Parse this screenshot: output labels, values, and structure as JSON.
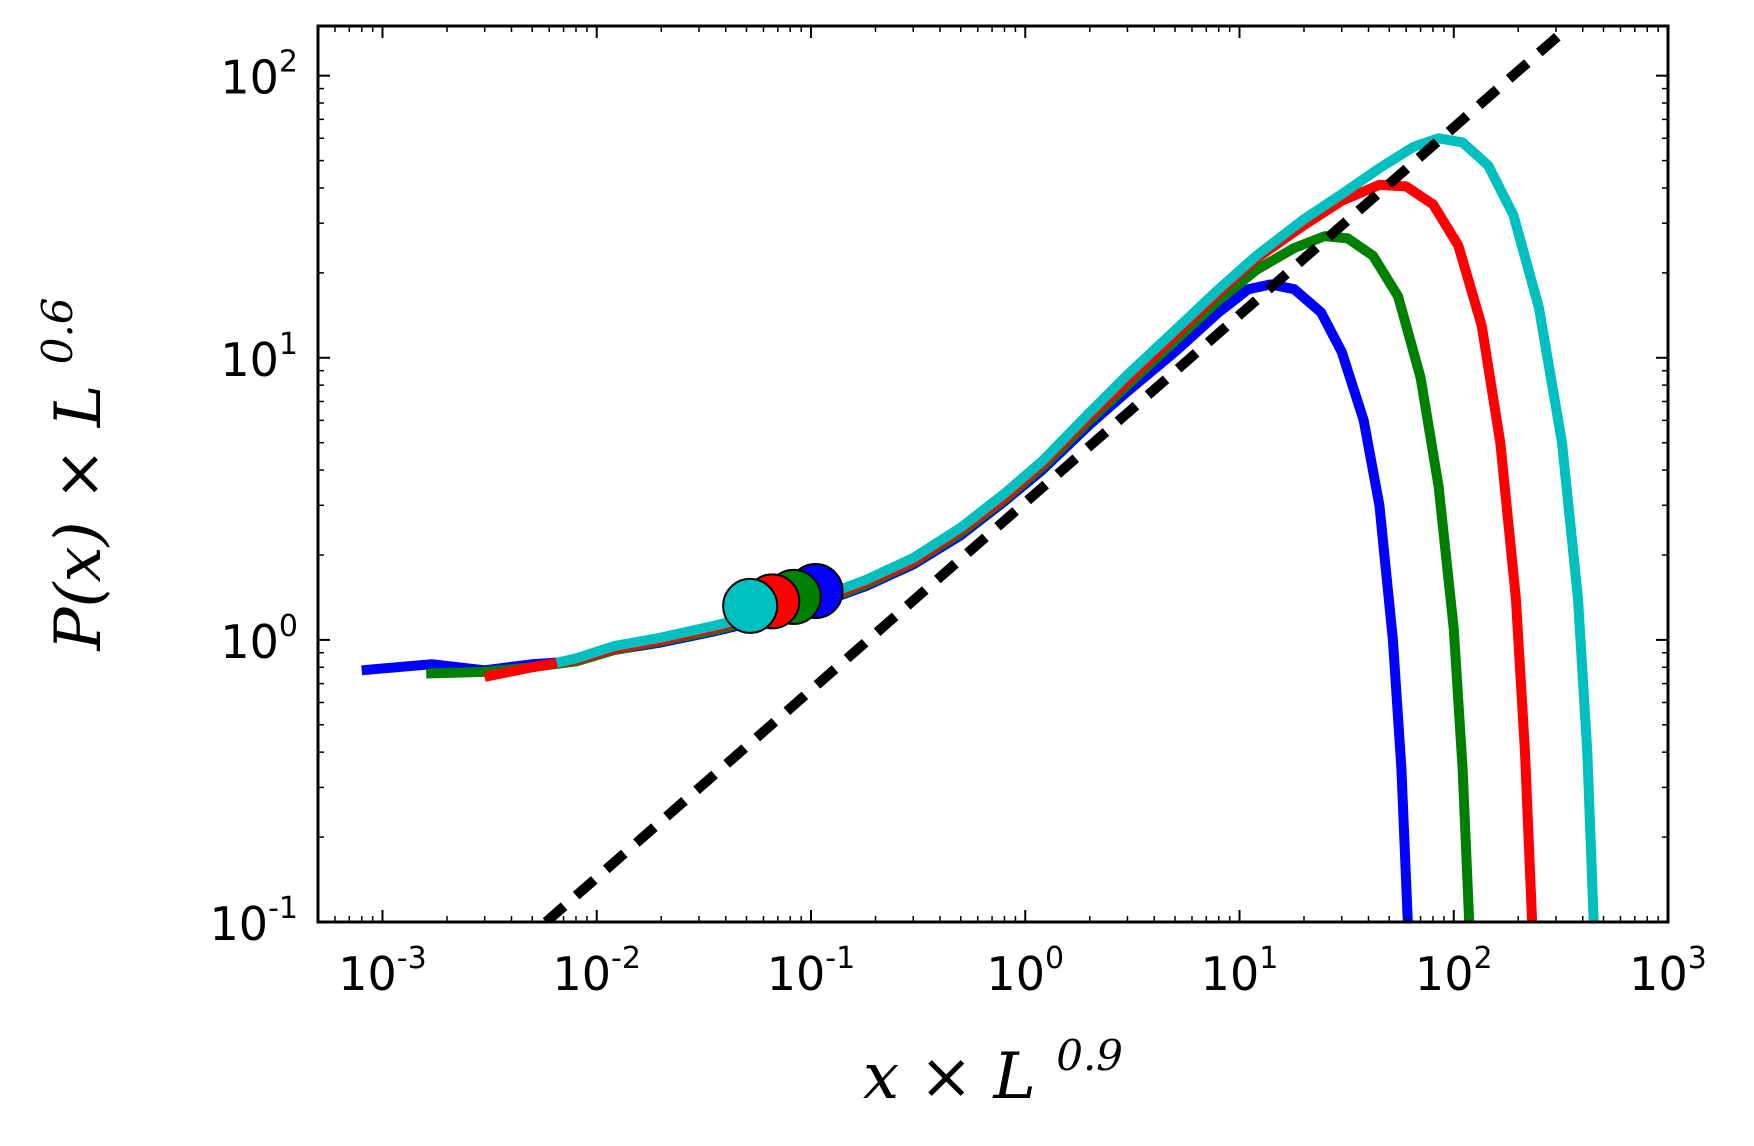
{
  "chart_data": {
    "type": "line",
    "title": "",
    "xlabel": "x × L^{0.9}",
    "ylabel": "P(x) × L^{0.6}",
    "xlabel_parts": {
      "var": "x",
      "times": "×",
      "base": "L",
      "exp": "0.9"
    },
    "ylabel_parts": {
      "func": "P(x)",
      "times": "×",
      "base": "L",
      "exp": "0.6"
    },
    "x_scale": "log",
    "y_scale": "log",
    "xlim": [
      0.0005,
      1000
    ],
    "ylim": [
      0.1,
      150
    ],
    "grid": false,
    "x_ticks": [
      {
        "value": 0.001,
        "base": "10",
        "exp": "-3"
      },
      {
        "value": 0.01,
        "base": "10",
        "exp": "-2"
      },
      {
        "value": 0.1,
        "base": "10",
        "exp": "-1"
      },
      {
        "value": 1,
        "base": "10",
        "exp": "0"
      },
      {
        "value": 10,
        "base": "10",
        "exp": "1"
      },
      {
        "value": 100,
        "base": "10",
        "exp": "2"
      },
      {
        "value": 1000,
        "base": "10",
        "exp": "3"
      }
    ],
    "y_ticks": [
      {
        "value": 0.1,
        "base": "10",
        "exp": "-1"
      },
      {
        "value": 1,
        "base": "10",
        "exp": "0"
      },
      {
        "value": 10,
        "base": "10",
        "exp": "1"
      },
      {
        "value": 100,
        "base": "10",
        "exp": "2"
      }
    ],
    "series": [
      {
        "color": "#0000ff",
        "marker": {
          "x": 0.105,
          "y": 1.49
        },
        "points": [
          [
            0.0008,
            0.78
          ],
          [
            0.0017,
            0.82
          ],
          [
            0.003,
            0.78
          ],
          [
            0.005,
            0.82
          ],
          [
            0.008,
            0.84
          ],
          [
            0.012,
            0.92
          ],
          [
            0.02,
            0.98
          ],
          [
            0.035,
            1.07
          ],
          [
            0.06,
            1.18
          ],
          [
            0.1,
            1.32
          ],
          [
            0.18,
            1.55
          ],
          [
            0.3,
            1.85
          ],
          [
            0.5,
            2.35
          ],
          [
            0.8,
            3.1
          ],
          [
            1.2,
            4.0
          ],
          [
            2,
            5.8
          ],
          [
            3,
            7.6
          ],
          [
            5,
            10.5
          ],
          [
            8,
            14.5
          ],
          [
            11,
            17.5
          ],
          [
            14,
            18.2
          ],
          [
            18,
            17.5
          ],
          [
            24,
            14.5
          ],
          [
            30,
            10.5
          ],
          [
            38,
            6.0
          ],
          [
            45,
            3.0
          ],
          [
            52,
            1.0
          ],
          [
            57,
            0.35
          ],
          [
            61,
            0.1
          ]
        ]
      },
      {
        "color": "#008000",
        "marker": {
          "x": 0.083,
          "y": 1.42
        },
        "points": [
          [
            0.0016,
            0.76
          ],
          [
            0.003,
            0.77
          ],
          [
            0.005,
            0.8
          ],
          [
            0.008,
            0.84
          ],
          [
            0.012,
            0.92
          ],
          [
            0.02,
            0.99
          ],
          [
            0.035,
            1.08
          ],
          [
            0.06,
            1.2
          ],
          [
            0.1,
            1.33
          ],
          [
            0.18,
            1.57
          ],
          [
            0.3,
            1.88
          ],
          [
            0.5,
            2.4
          ],
          [
            0.8,
            3.15
          ],
          [
            1.2,
            4.1
          ],
          [
            2,
            6.0
          ],
          [
            3,
            8.0
          ],
          [
            5,
            11.5
          ],
          [
            8,
            16.0
          ],
          [
            12,
            20.5
          ],
          [
            18,
            24.5
          ],
          [
            25,
            27.0
          ],
          [
            32,
            26.5
          ],
          [
            42,
            23.0
          ],
          [
            55,
            16.5
          ],
          [
            70,
            8.5
          ],
          [
            85,
            3.5
          ],
          [
            100,
            1.1
          ],
          [
            110,
            0.35
          ],
          [
            118,
            0.1
          ]
        ]
      },
      {
        "color": "#ff0000",
        "marker": {
          "x": 0.066,
          "y": 1.37
        },
        "points": [
          [
            0.003,
            0.74
          ],
          [
            0.005,
            0.8
          ],
          [
            0.008,
            0.85
          ],
          [
            0.012,
            0.93
          ],
          [
            0.02,
            1.0
          ],
          [
            0.035,
            1.1
          ],
          [
            0.06,
            1.22
          ],
          [
            0.1,
            1.35
          ],
          [
            0.18,
            1.6
          ],
          [
            0.3,
            1.9
          ],
          [
            0.5,
            2.45
          ],
          [
            0.8,
            3.2
          ],
          [
            1.2,
            4.2
          ],
          [
            2,
            6.2
          ],
          [
            3,
            8.3
          ],
          [
            5,
            12.0
          ],
          [
            8,
            17.0
          ],
          [
            12,
            22.5
          ],
          [
            20,
            29.5
          ],
          [
            30,
            36.0
          ],
          [
            45,
            41.0
          ],
          [
            60,
            40.5
          ],
          [
            80,
            35.0
          ],
          [
            105,
            25.0
          ],
          [
            135,
            13.0
          ],
          [
            165,
            5.0
          ],
          [
            195,
            1.4
          ],
          [
            215,
            0.4
          ],
          [
            232,
            0.1
          ]
        ]
      },
      {
        "color": "#00bfbf",
        "marker": {
          "x": 0.052,
          "y": 1.32
        },
        "points": [
          [
            0.0065,
            0.83
          ],
          [
            0.008,
            0.86
          ],
          [
            0.012,
            0.95
          ],
          [
            0.02,
            1.02
          ],
          [
            0.035,
            1.12
          ],
          [
            0.06,
            1.24
          ],
          [
            0.1,
            1.38
          ],
          [
            0.18,
            1.63
          ],
          [
            0.3,
            1.95
          ],
          [
            0.5,
            2.5
          ],
          [
            0.8,
            3.3
          ],
          [
            1.2,
            4.3
          ],
          [
            2,
            6.4
          ],
          [
            3,
            8.7
          ],
          [
            5,
            12.5
          ],
          [
            8,
            17.5
          ],
          [
            12,
            23.0
          ],
          [
            20,
            31.0
          ],
          [
            30,
            38.0
          ],
          [
            45,
            47.0
          ],
          [
            65,
            56.0
          ],
          [
            85,
            60.0
          ],
          [
            110,
            58.0
          ],
          [
            145,
            48.0
          ],
          [
            190,
            32.0
          ],
          [
            250,
            15.0
          ],
          [
            320,
            5.0
          ],
          [
            380,
            1.4
          ],
          [
            420,
            0.4
          ],
          [
            450,
            0.1
          ]
        ]
      }
    ],
    "reference_line": {
      "style": "dashed",
      "color": "#000000",
      "points": [
        [
          0.0058,
          0.1
        ],
        [
          330,
          145
        ]
      ]
    }
  }
}
